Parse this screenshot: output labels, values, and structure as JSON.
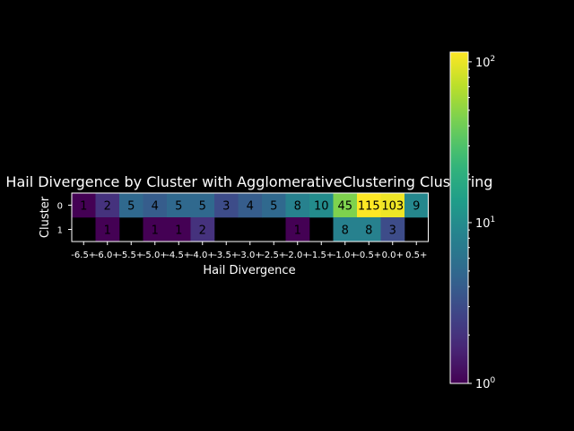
{
  "chart_data": {
    "type": "heatmap",
    "title": "Hail Divergence by Cluster with AgglomerativeClustering Clustering",
    "xlabel": "Hail Divergence",
    "ylabel": "Cluster",
    "x_categories": [
      "-6.5+",
      "-6.0+",
      "-5.5+",
      "-5.0+",
      "-4.5+",
      "-4.0+",
      "-3.5+",
      "-3.0+",
      "-2.5+",
      "-2.0+",
      "-1.5+",
      "-1.0+",
      "-0.5+",
      "0.0+",
      "0.5+"
    ],
    "y_categories": [
      "0",
      "1"
    ],
    "values": [
      [
        1,
        2,
        5,
        4,
        5,
        5,
        3,
        4,
        5,
        8,
        10,
        45,
        115,
        103,
        9
      ],
      [
        null,
        1,
        null,
        1,
        1,
        2,
        null,
        null,
        null,
        1,
        null,
        8,
        8,
        3,
        null
      ]
    ],
    "colormap": "viridis",
    "color_scale": "log",
    "colorbar": {
      "range": [
        1,
        115
      ],
      "ticks": [
        {
          "value": 1,
          "base": "10",
          "exp": "0"
        },
        {
          "value": 10,
          "base": "10",
          "exp": "1"
        },
        {
          "value": 100,
          "base": "10",
          "exp": "2"
        }
      ]
    },
    "background": "#000000",
    "text_color": "#ffffff"
  }
}
